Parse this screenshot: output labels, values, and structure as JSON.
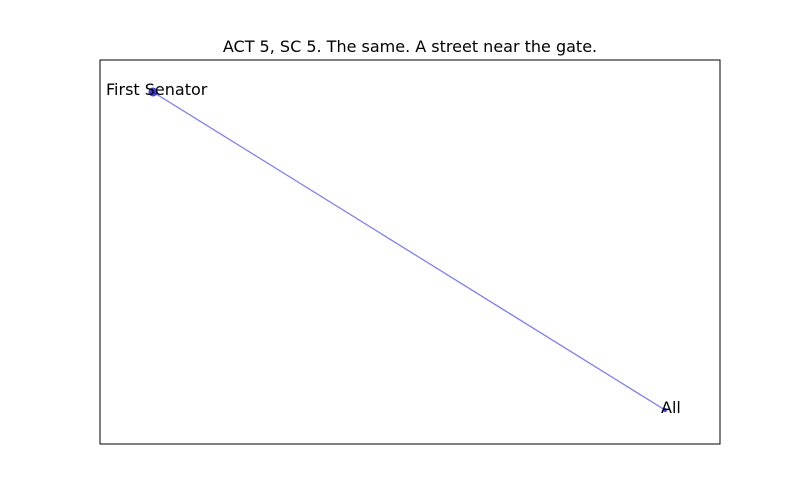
{
  "title": "ACT 5, SC 5. The same. A street near the gate.",
  "graph": {
    "nodes": [
      {
        "id": "first-senator",
        "label": "First Senator",
        "size": "medium"
      },
      {
        "id": "all",
        "label": "All",
        "size": "small"
      }
    ],
    "edges": [
      {
        "source": "first-senator",
        "target": "all"
      }
    ]
  },
  "colors": {
    "background": "#ffffff",
    "frame": "#000000",
    "node_fill": "#0000cc",
    "edge": "#7777ff",
    "text": "#000000"
  }
}
